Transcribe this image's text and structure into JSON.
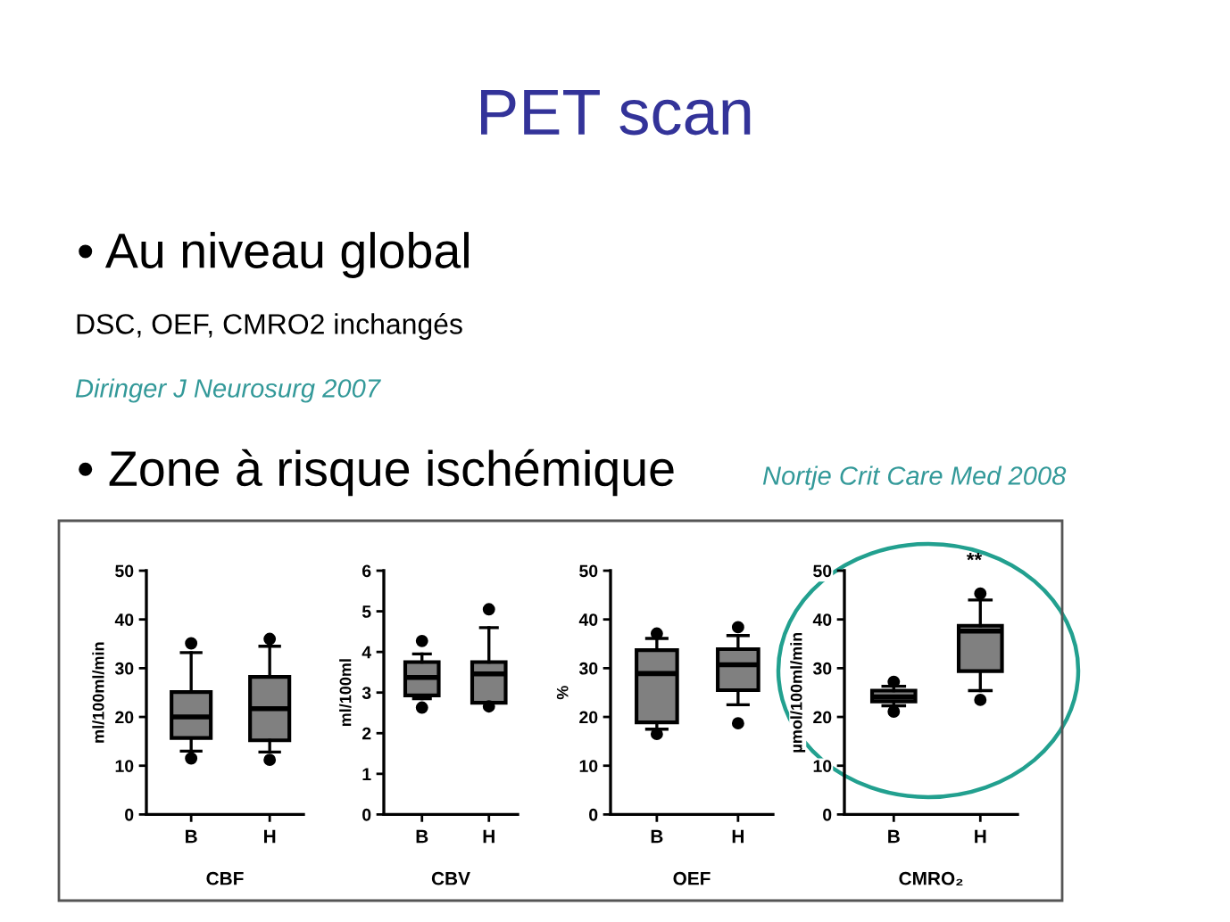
{
  "chart_data": [
    {
      "type": "other",
      "title": "PET scan",
      "annotations": [
        "• Au niveau global",
        "DSC, OEF, CMRO2 inchangés",
        "Diringer J Neurosurg 2007",
        "• Zone à risque ischémique",
        "Nortje Crit Care Med 2008"
      ]
    },
    {
      "type": "box",
      "categories": [
        "B",
        "H"
      ],
      "xlabel": "CBF",
      "ylabel": "ml/100ml/min",
      "ylim": [
        0,
        50
      ],
      "yticks": [
        0,
        10,
        20,
        30,
        40,
        50
      ],
      "series": [
        {
          "color": "#808080",
          "boxes": [
            {
              "low": 13.0,
              "q1": 15.7,
              "median": 20.0,
              "q3": 25.1,
              "high": 33.2,
              "outliers": [
                11.5,
                35.1
              ]
            },
            {
              "low": 12.8,
              "q1": 15.2,
              "median": 21.7,
              "q3": 28.2,
              "high": 34.5,
              "outliers": [
                11.2,
                36.0
              ]
            }
          ]
        }
      ]
    },
    {
      "type": "box",
      "categories": [
        "B",
        "H"
      ],
      "xlabel": "CBV",
      "ylabel": "ml/100ml",
      "ylim": [
        0,
        6
      ],
      "yticks": [
        0,
        1,
        2,
        3,
        4,
        5,
        6
      ],
      "series": [
        {
          "color": "#808080",
          "boxes": [
            {
              "low": 2.85,
              "q1": 2.93,
              "median": 3.37,
              "q3": 3.75,
              "high": 3.95,
              "outliers": [
                2.63,
                4.27
              ]
            },
            {
              "low": 2.75,
              "q1": 2.75,
              "median": 3.46,
              "q3": 3.75,
              "high": 4.6,
              "outliers": [
                2.66,
                5.05
              ]
            }
          ]
        }
      ]
    },
    {
      "type": "box",
      "categories": [
        "B",
        "H"
      ],
      "xlabel": "OEF",
      "ylabel": "%",
      "ylim": [
        0,
        50
      ],
      "yticks": [
        0,
        10,
        20,
        30,
        40,
        50
      ],
      "series": [
        {
          "color": "#808080",
          "boxes": [
            {
              "low": 17.5,
              "q1": 18.9,
              "median": 28.9,
              "q3": 33.7,
              "high": 36.1,
              "outliers": [
                16.5,
                37.1
              ]
            },
            {
              "low": 22.5,
              "q1": 25.5,
              "median": 30.7,
              "q3": 33.9,
              "high": 36.7,
              "outliers": [
                18.7,
                38.4
              ]
            }
          ]
        }
      ]
    },
    {
      "type": "box",
      "categories": [
        "B",
        "H"
      ],
      "xlabel": "CMRO₂",
      "ylabel": "µmol/100ml/min",
      "ylim": [
        0,
        50
      ],
      "yticks": [
        0,
        10,
        20,
        30,
        40,
        50
      ],
      "annotations": [
        "**"
      ],
      "series": [
        {
          "color": "#808080",
          "boxes": [
            {
              "low": 22.3,
              "q1": 23.2,
              "median": 24.1,
              "q3": 25.4,
              "high": 26.3,
              "outliers": [
                21.1,
                27.2
              ]
            },
            {
              "low": 25.4,
              "q1": 29.4,
              "median": 37.6,
              "q3": 38.7,
              "high": 44.0,
              "outliers": [
                23.5,
                45.3
              ]
            }
          ]
        }
      ]
    }
  ]
}
